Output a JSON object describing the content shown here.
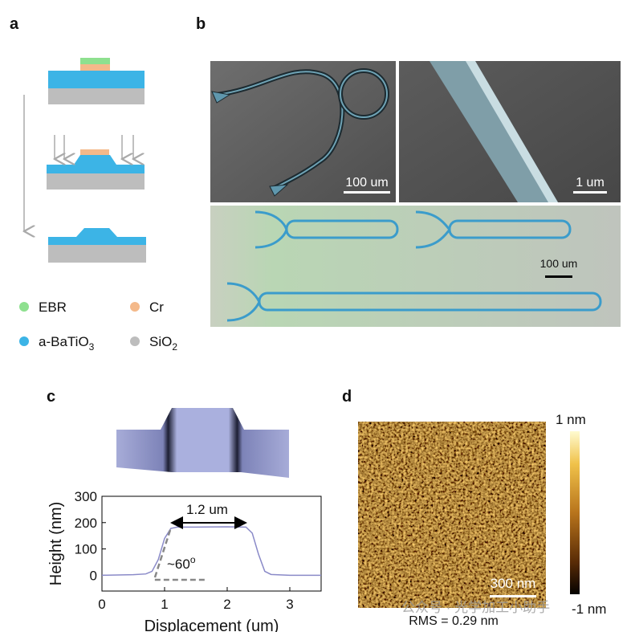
{
  "panels": {
    "a": {
      "label": "a",
      "legend": [
        {
          "text": "EBR",
          "color": "#8ee08f"
        },
        {
          "text": "Cr",
          "color": "#f4b98a"
        },
        {
          "text": "a-BaTiO",
          "sub": "3",
          "color": "#3cb4e6"
        },
        {
          "text": "SiO",
          "sub": "2",
          "color": "#bdbdbd"
        }
      ]
    },
    "b": {
      "label": "b",
      "scale_bars": [
        "100 um",
        "1 um",
        "100 um"
      ]
    },
    "c": {
      "label": "c"
    },
    "d": {
      "label": "d",
      "colorbar_max": "1 nm",
      "colorbar_min": "-1 nm",
      "scale_bar": "300 nm",
      "caption": "RMS = 0.29 nm"
    }
  },
  "watermark": "公众号 · 光学加工小助手",
  "chart_data": {
    "type": "line",
    "x": [
      0,
      0.5,
      0.7,
      0.8,
      0.9,
      1.0,
      1.1,
      1.2,
      1.5,
      2.0,
      2.3,
      2.4,
      2.5,
      2.6,
      2.7,
      3.0,
      3.5
    ],
    "values": [
      0,
      2,
      5,
      15,
      60,
      140,
      178,
      183,
      183,
      184,
      183,
      160,
      80,
      15,
      3,
      0,
      0
    ],
    "color": "#8a8ac8",
    "xlim": [
      0,
      3.5
    ],
    "ylim": [
      -60,
      300
    ],
    "xticks": [
      0,
      1,
      2,
      3
    ],
    "yticks": [
      0,
      100,
      200,
      300
    ],
    "xlabel": "Displacement (um)",
    "ylabel": "Height (nm)",
    "annotations": [
      {
        "text": "1.2 um"
      },
      {
        "text": "~60",
        "sup": "o"
      }
    ]
  }
}
